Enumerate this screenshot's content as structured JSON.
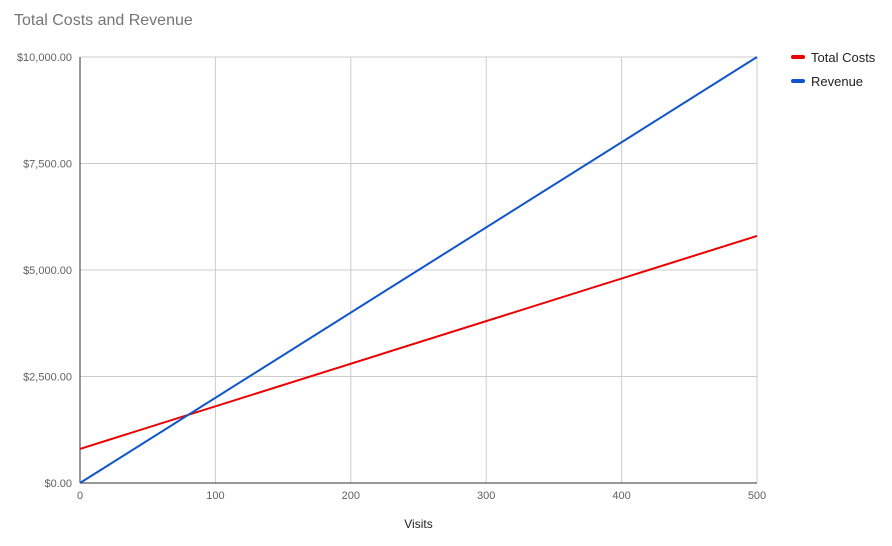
{
  "chart_data": {
    "type": "line",
    "title": "Total Costs and Revenue",
    "xlabel": "Visits",
    "ylabel": "",
    "xlim": [
      0,
      500
    ],
    "ylim": [
      0,
      10000
    ],
    "x_ticks": [
      0,
      100,
      200,
      300,
      400,
      500
    ],
    "x_tick_labels": [
      "0",
      "100",
      "200",
      "300",
      "400",
      "500"
    ],
    "y_ticks": [
      0,
      2500,
      5000,
      7500,
      10000
    ],
    "y_tick_labels": [
      "$0.00",
      "$2,500.00",
      "$5,000.00",
      "$7,500.00",
      "$10,000.00"
    ],
    "grid": true,
    "legend_position": "top-right",
    "series": [
      {
        "name": "Total Costs",
        "color": "#ea0000",
        "x": [
          0,
          500
        ],
        "y": [
          800,
          5800
        ]
      },
      {
        "name": "Revenue",
        "color": "#1155cc",
        "x": [
          0,
          500
        ],
        "y": [
          0,
          10000
        ]
      }
    ]
  }
}
